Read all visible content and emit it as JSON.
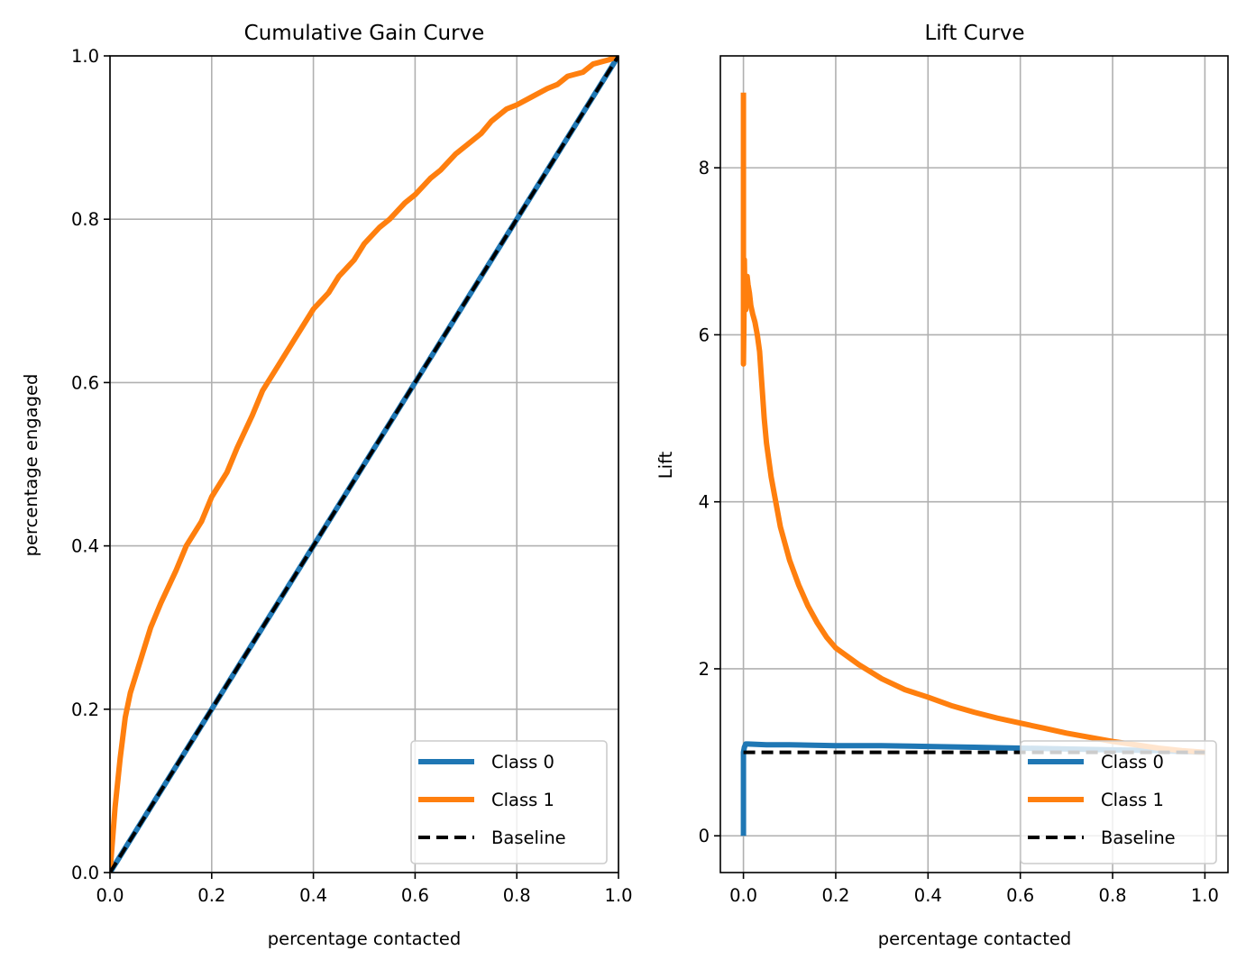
{
  "colors": {
    "class0": "#1f77b4",
    "class1": "#ff7f0e",
    "baseline": "#000000",
    "grid": "#b0b0b0"
  },
  "chart_data": [
    {
      "type": "line",
      "title": "Cumulative Gain Curve",
      "xlabel": "percentage contacted",
      "ylabel": "percentage engaged",
      "xlim": [
        0.0,
        1.0
      ],
      "ylim": [
        0.0,
        1.0
      ],
      "xticks": [
        "0.0",
        "0.2",
        "0.4",
        "0.6",
        "0.8",
        "1.0"
      ],
      "yticks": [
        "0.0",
        "0.2",
        "0.4",
        "0.6",
        "0.8",
        "1.0"
      ],
      "grid": true,
      "legend_position": "lower-right",
      "legend": [
        "Class 0",
        "Class 1",
        "Baseline"
      ],
      "series": [
        {
          "name": "Class 0",
          "x": [
            0.0,
            1.0
          ],
          "y": [
            0.0,
            1.0
          ]
        },
        {
          "name": "Class 1",
          "x": [
            0.0,
            0.01,
            0.02,
            0.03,
            0.04,
            0.06,
            0.08,
            0.1,
            0.13,
            0.15,
            0.18,
            0.2,
            0.23,
            0.25,
            0.28,
            0.3,
            0.33,
            0.36,
            0.38,
            0.4,
            0.43,
            0.45,
            0.48,
            0.5,
            0.53,
            0.55,
            0.58,
            0.6,
            0.63,
            0.65,
            0.68,
            0.7,
            0.73,
            0.75,
            0.78,
            0.8,
            0.83,
            0.86,
            0.88,
            0.9,
            0.93,
            0.95,
            0.98,
            1.0
          ],
          "y": [
            0.0,
            0.08,
            0.14,
            0.19,
            0.22,
            0.26,
            0.3,
            0.33,
            0.37,
            0.4,
            0.43,
            0.46,
            0.49,
            0.52,
            0.56,
            0.59,
            0.62,
            0.65,
            0.67,
            0.69,
            0.71,
            0.73,
            0.75,
            0.77,
            0.79,
            0.8,
            0.82,
            0.83,
            0.85,
            0.86,
            0.88,
            0.89,
            0.905,
            0.92,
            0.935,
            0.94,
            0.95,
            0.96,
            0.965,
            0.975,
            0.98,
            0.99,
            0.995,
            1.0
          ]
        },
        {
          "name": "Baseline",
          "x": [
            0.0,
            1.0
          ],
          "y": [
            0.0,
            1.0
          ]
        }
      ]
    },
    {
      "type": "line",
      "title": "Lift Curve",
      "xlabel": "percentage contacted",
      "ylabel": "Lift",
      "xlim": [
        -0.05,
        1.05
      ],
      "ylim": [
        -0.44,
        9.34
      ],
      "xticks": [
        "0.0",
        "0.2",
        "0.4",
        "0.6",
        "0.8",
        "1.0"
      ],
      "yticks": [
        "0",
        "2",
        "4",
        "6",
        "8"
      ],
      "grid": true,
      "legend_position": "lower-right",
      "legend": [
        "Class 0",
        "Class 1",
        "Baseline"
      ],
      "series": [
        {
          "name": "Class 0",
          "x": [
            0.0,
            0.0,
            0.002,
            0.005,
            0.01,
            0.05,
            0.1,
            0.2,
            0.3,
            0.4,
            0.5,
            0.6,
            0.7,
            0.8,
            0.9,
            1.0
          ],
          "y": [
            0.0,
            1.0,
            1.06,
            1.1,
            1.1,
            1.09,
            1.09,
            1.08,
            1.08,
            1.07,
            1.06,
            1.05,
            1.04,
            1.03,
            1.02,
            1.0
          ]
        },
        {
          "name": "Class 1",
          "x": [
            0.0,
            0.0,
            0.0,
            0.001,
            0.002,
            0.003,
            0.005,
            0.008,
            0.01,
            0.013,
            0.016,
            0.02,
            0.025,
            0.03,
            0.035,
            0.04,
            0.045,
            0.05,
            0.06,
            0.07,
            0.08,
            0.09,
            0.1,
            0.12,
            0.14,
            0.16,
            0.18,
            0.2,
            0.25,
            0.3,
            0.35,
            0.4,
            0.45,
            0.5,
            0.55,
            0.6,
            0.65,
            0.7,
            0.75,
            0.8,
            0.85,
            0.9,
            0.95,
            1.0
          ],
          "y": [
            8.9,
            7.5,
            5.65,
            6.1,
            6.9,
            6.5,
            6.3,
            6.7,
            6.6,
            6.5,
            6.35,
            6.25,
            6.15,
            6.0,
            5.8,
            5.4,
            5.0,
            4.7,
            4.3,
            4.0,
            3.7,
            3.5,
            3.3,
            3.0,
            2.75,
            2.55,
            2.38,
            2.25,
            2.05,
            1.88,
            1.75,
            1.66,
            1.56,
            1.48,
            1.41,
            1.35,
            1.29,
            1.23,
            1.18,
            1.13,
            1.09,
            1.05,
            1.02,
            1.0
          ]
        },
        {
          "name": "Baseline",
          "x": [
            0.0,
            1.0
          ],
          "y": [
            1.0,
            1.0
          ]
        }
      ]
    }
  ]
}
